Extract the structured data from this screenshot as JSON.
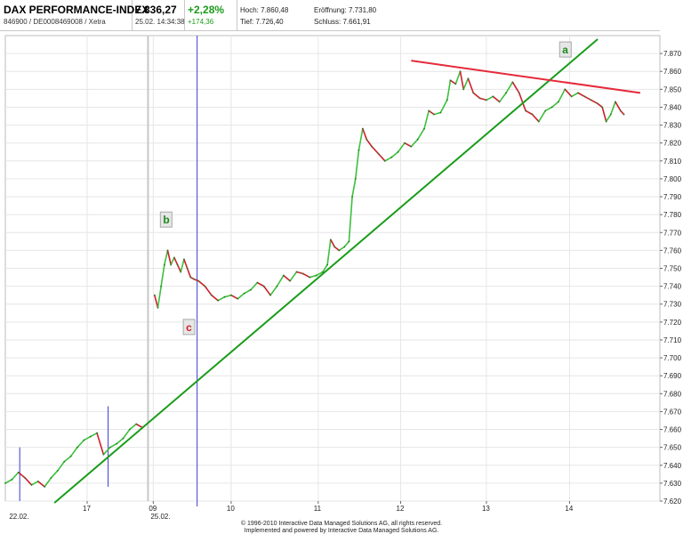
{
  "header": {
    "title": "DAX PERFORMANCE-INDEX",
    "subtitle": "846900 / DE0008469008 / Xetra",
    "price": "7.836,27",
    "timestamp": "25.02. 14:34:38",
    "change_pct": "+2,28%",
    "change_abs": "+174,36",
    "hoch": "Hoch: 7.860,48",
    "eroeffnung": "Eröffnung: 7.731,80",
    "tief": "Tief: 7.726,40",
    "schluss": "Schluss: 7.661,91"
  },
  "footer": {
    "line1": "© 1996-2010 Interactive Data Managed Solutions AG, all rights reserved.",
    "line2": "Implemented and powered by Interactive Data Managed Solutions AG."
  },
  "colors": {
    "up": "#3cc03c",
    "down": "#cc1f2a",
    "trendline": "#1a9c1a",
    "resistance": "#e52a3a",
    "vline": "#3b3bd6",
    "grid": "#e6e6e6",
    "label_green": "#1a8a1a",
    "label_red": "#cc1f2a"
  },
  "chart_data": {
    "type": "line",
    "title": "",
    "xlabel": "",
    "ylabel": "",
    "ylim": [
      7620,
      7880
    ],
    "yticks": [
      "7.620",
      "7.630",
      "7.640",
      "7.650",
      "7.660",
      "7.670",
      "7.680",
      "7.690",
      "7.700",
      "7.710",
      "7.720",
      "7.730",
      "7.740",
      "7.750",
      "7.760",
      "7.770",
      "7.780",
      "7.790",
      "7.800",
      "7.810",
      "7.820",
      "7.830",
      "7.840",
      "7.850",
      "7.860",
      "7.870"
    ],
    "xticks": [
      {
        "label": "17",
        "t": 0.125
      },
      {
        "label": "09",
        "t": 0.226
      },
      {
        "label": "10",
        "t": 0.345
      },
      {
        "label": "11",
        "t": 0.478
      },
      {
        "label": "12",
        "t": 0.604
      },
      {
        "label": "13",
        "t": 0.735
      },
      {
        "label": "14",
        "t": 0.862
      }
    ],
    "date_labels": [
      {
        "label": "22.02.",
        "t": 0.01
      },
      {
        "label": "25.02.",
        "t": 0.226
      }
    ],
    "series": [
      {
        "values": [
          [
            0.0,
            7630
          ],
          [
            0.01,
            7632
          ],
          [
            0.02,
            7636
          ],
          [
            0.03,
            7633
          ],
          [
            0.04,
            7629
          ],
          [
            0.05,
            7631
          ],
          [
            0.06,
            7628
          ],
          [
            0.07,
            7633
          ],
          [
            0.08,
            7637
          ],
          [
            0.09,
            7642
          ],
          [
            0.1,
            7645
          ],
          [
            0.11,
            7650
          ],
          [
            0.12,
            7654
          ],
          [
            0.13,
            7656
          ],
          [
            0.14,
            7658
          ],
          [
            0.15,
            7646
          ],
          [
            0.16,
            7650
          ],
          [
            0.17,
            7652
          ],
          [
            0.18,
            7655
          ],
          [
            0.19,
            7660
          ],
          [
            0.2,
            7663
          ],
          [
            0.21,
            7661
          ],
          null,
          [
            0.228,
            7735
          ],
          [
            0.233,
            7728
          ],
          [
            0.238,
            7740
          ],
          [
            0.243,
            7752
          ],
          [
            0.248,
            7760
          ],
          [
            0.253,
            7752
          ],
          [
            0.258,
            7756
          ],
          [
            0.263,
            7752
          ],
          [
            0.268,
            7748
          ],
          [
            0.273,
            7755
          ],
          [
            0.278,
            7750
          ],
          [
            0.283,
            7745
          ],
          [
            0.288,
            7744
          ],
          [
            0.295,
            7743
          ],
          [
            0.305,
            7740
          ],
          [
            0.315,
            7735
          ],
          [
            0.325,
            7732
          ],
          [
            0.335,
            7734
          ],
          [
            0.345,
            7735
          ],
          [
            0.355,
            7733
          ],
          [
            0.365,
            7736
          ],
          [
            0.375,
            7738
          ],
          [
            0.385,
            7742
          ],
          [
            0.395,
            7740
          ],
          [
            0.405,
            7735
          ],
          [
            0.415,
            7740
          ],
          [
            0.425,
            7746
          ],
          [
            0.435,
            7743
          ],
          [
            0.445,
            7748
          ],
          [
            0.455,
            7747
          ],
          [
            0.465,
            7745
          ],
          [
            0.475,
            7746
          ],
          [
            0.485,
            7748
          ],
          [
            0.492,
            7752
          ],
          [
            0.497,
            7766
          ],
          [
            0.503,
            7762
          ],
          [
            0.51,
            7760
          ],
          [
            0.518,
            7762
          ],
          [
            0.525,
            7765
          ],
          [
            0.53,
            7790
          ],
          [
            0.535,
            7800
          ],
          [
            0.54,
            7816
          ],
          [
            0.546,
            7828
          ],
          [
            0.552,
            7822
          ],
          [
            0.56,
            7818
          ],
          [
            0.57,
            7814
          ],
          [
            0.58,
            7810
          ],
          [
            0.59,
            7812
          ],
          [
            0.6,
            7815
          ],
          [
            0.61,
            7820
          ],
          [
            0.62,
            7818
          ],
          [
            0.63,
            7822
          ],
          [
            0.64,
            7828
          ],
          [
            0.647,
            7838
          ],
          [
            0.655,
            7836
          ],
          [
            0.665,
            7837
          ],
          [
            0.675,
            7844
          ],
          [
            0.68,
            7855
          ],
          [
            0.688,
            7853
          ],
          [
            0.695,
            7860
          ],
          [
            0.7,
            7850
          ],
          [
            0.707,
            7856
          ],
          [
            0.715,
            7848
          ],
          [
            0.725,
            7845
          ],
          [
            0.735,
            7844
          ],
          [
            0.745,
            7846
          ],
          [
            0.755,
            7843
          ],
          [
            0.765,
            7848
          ],
          [
            0.775,
            7854
          ],
          [
            0.785,
            7848
          ],
          [
            0.795,
            7838
          ],
          [
            0.805,
            7836
          ],
          [
            0.815,
            7832
          ],
          [
            0.825,
            7838
          ],
          [
            0.835,
            7840
          ],
          [
            0.845,
            7843
          ],
          [
            0.855,
            7850
          ],
          [
            0.865,
            7846
          ],
          [
            0.875,
            7848
          ],
          [
            0.885,
            7846
          ],
          [
            0.895,
            7844
          ],
          [
            0.905,
            7842
          ],
          [
            0.912,
            7840
          ],
          [
            0.918,
            7832
          ],
          [
            0.925,
            7836
          ],
          [
            0.932,
            7843
          ],
          [
            0.94,
            7838
          ],
          [
            0.945,
            7836
          ]
        ]
      }
    ],
    "annotations": [
      {
        "label": "a",
        "color": "green",
        "t": 0.855,
        "y": 7872
      },
      {
        "label": "b",
        "color": "green",
        "t": 0.245,
        "y": 7777
      },
      {
        "label": "c",
        "color": "red",
        "t": 0.28,
        "y": 7717
      }
    ],
    "lines": [
      {
        "type": "trend",
        "from": [
          0.075,
          7619
        ],
        "to": [
          0.905,
          7878
        ]
      },
      {
        "type": "resistance",
        "from": [
          0.62,
          7866
        ],
        "to": [
          0.97,
          7848
        ]
      }
    ],
    "vlines": [
      {
        "t": 0.022,
        "y0": 7620,
        "y1": 7650,
        "color": "blue"
      },
      {
        "t": 0.157,
        "y0": 7628,
        "y1": 7673,
        "color": "blue"
      },
      {
        "t": 0.218,
        "y0": 7620,
        "y1": 7880,
        "color": "grey"
      },
      {
        "t": 0.293,
        "y0": 7617,
        "y1": 7880,
        "color": "blue"
      }
    ]
  }
}
